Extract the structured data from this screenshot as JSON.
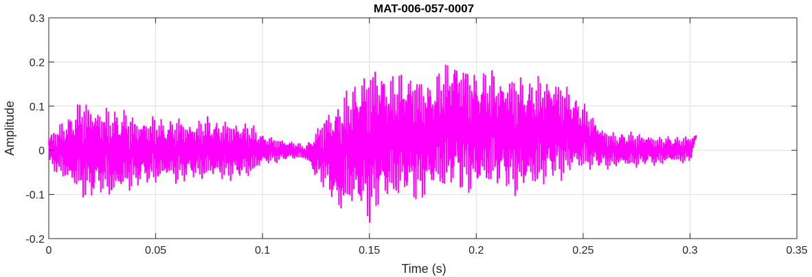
{
  "chart_data": {
    "type": "line",
    "title": "MAT-006-057-0007",
    "xlabel": "Time (s)",
    "ylabel": "Amplitude",
    "xlim": [
      0,
      0.35
    ],
    "ylim": [
      -0.2,
      0.3
    ],
    "x_ticks": [
      0,
      0.05,
      0.1,
      0.15,
      0.2,
      0.25,
      0.3,
      0.35
    ],
    "x_tick_labels": [
      "0",
      "0.05",
      "0.1",
      "0.15",
      "0.2",
      "0.25",
      "0.3",
      "0.35"
    ],
    "y_ticks": [
      -0.2,
      -0.1,
      0,
      0.1,
      0.2,
      0.3
    ],
    "y_tick_labels": [
      "-0.2",
      "-0.1",
      "0",
      "0.1",
      "0.2",
      "0.3"
    ],
    "grid": true,
    "series": [
      {
        "color": "#ff00ff",
        "x": [
          0,
          0.005,
          0.01,
          0.015,
          0.02,
          0.025,
          0.03,
          0.035,
          0.04,
          0.045,
          0.05,
          0.055,
          0.06,
          0.065,
          0.07,
          0.075,
          0.08,
          0.085,
          0.09,
          0.095,
          0.1,
          0.105,
          0.11,
          0.115,
          0.12,
          0.125,
          0.13,
          0.135,
          0.14,
          0.145,
          0.15,
          0.155,
          0.16,
          0.165,
          0.17,
          0.175,
          0.18,
          0.185,
          0.19,
          0.195,
          0.2,
          0.205,
          0.21,
          0.215,
          0.22,
          0.225,
          0.23,
          0.235,
          0.24,
          0.245,
          0.25,
          0.255,
          0.26,
          0.265,
          0.27,
          0.275,
          0.28,
          0.285,
          0.29,
          0.295,
          0.3,
          0.303
        ],
        "y_max": [
          0.04,
          0.06,
          0.09,
          0.12,
          0.12,
          0.1,
          0.1,
          0.1,
          0.08,
          0.08,
          0.08,
          0.07,
          0.08,
          0.07,
          0.07,
          0.08,
          0.07,
          0.07,
          0.07,
          0.06,
          0.04,
          0.03,
          0.025,
          0.02,
          0.01,
          0.05,
          0.09,
          0.12,
          0.14,
          0.18,
          0.2,
          0.21,
          0.17,
          0.19,
          0.19,
          0.17,
          0.17,
          0.2,
          0.23,
          0.2,
          0.19,
          0.19,
          0.18,
          0.18,
          0.18,
          0.17,
          0.17,
          0.18,
          0.16,
          0.14,
          0.11,
          0.08,
          0.05,
          0.04,
          0.045,
          0.04,
          0.04,
          0.03,
          0.035,
          0.03,
          0.035,
          0.035
        ],
        "y_min": [
          -0.04,
          -0.06,
          -0.09,
          -0.11,
          -0.12,
          -0.1,
          -0.12,
          -0.1,
          -0.09,
          -0.08,
          -0.08,
          -0.07,
          -0.08,
          -0.07,
          -0.07,
          -0.07,
          -0.07,
          -0.07,
          -0.07,
          -0.06,
          -0.035,
          -0.03,
          -0.025,
          -0.02,
          -0.02,
          -0.07,
          -0.09,
          -0.16,
          -0.13,
          -0.15,
          -0.17,
          -0.14,
          -0.12,
          -0.12,
          -0.12,
          -0.12,
          -0.1,
          -0.1,
          -0.1,
          -0.1,
          -0.11,
          -0.09,
          -0.09,
          -0.1,
          -0.11,
          -0.1,
          -0.09,
          -0.08,
          -0.07,
          -0.06,
          -0.05,
          -0.045,
          -0.045,
          -0.04,
          -0.04,
          -0.04,
          -0.035,
          -0.035,
          -0.03,
          -0.03,
          -0.03,
          0.03
        ]
      }
    ]
  }
}
